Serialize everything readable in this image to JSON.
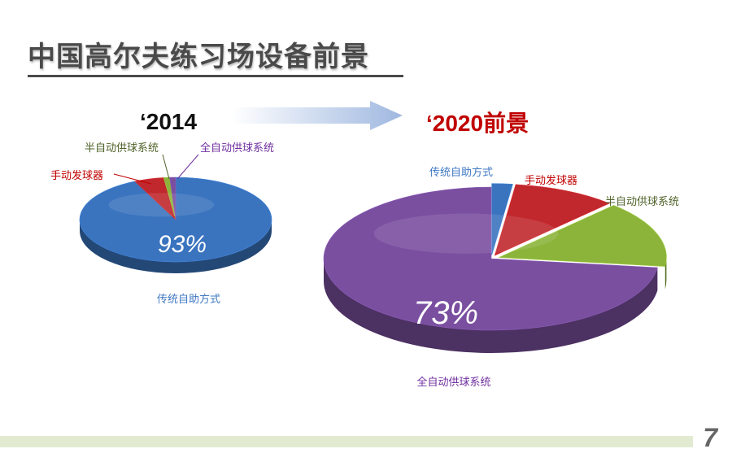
{
  "slide": {
    "title": "中国高尔夫练习场设备前景",
    "page_number": "7"
  },
  "chart_data": [
    {
      "type": "pie",
      "title": "‘2014",
      "categories": [
        "传统自助方式",
        "手动发球器",
        "半自动供球系统",
        "全自动供球系统"
      ],
      "values": [
        93,
        5,
        1,
        1
      ],
      "colors": [
        "#3a74bf",
        "#c0282d",
        "#8cb43a",
        "#7a4fa0"
      ],
      "value_labels": [
        "93%",
        "",
        "",
        ""
      ],
      "label_colors": [
        "#3f78c2",
        "#c00000",
        "#4f6228",
        "#7030a0"
      ]
    },
    {
      "type": "pie",
      "title": "‘2020前景",
      "categories": [
        "传统自助方式",
        "手动发球器",
        "半自动供球系统",
        "全自动供球系统"
      ],
      "values": [
        2,
        10,
        15,
        73
      ],
      "colors": [
        "#3a74bf",
        "#c0282d",
        "#8cb43a",
        "#7a4fa0"
      ],
      "value_labels": [
        "",
        "",
        "",
        "73%"
      ],
      "label_colors": [
        "#3f78c2",
        "#c00000",
        "#4f6228",
        "#7030a0"
      ]
    }
  ]
}
